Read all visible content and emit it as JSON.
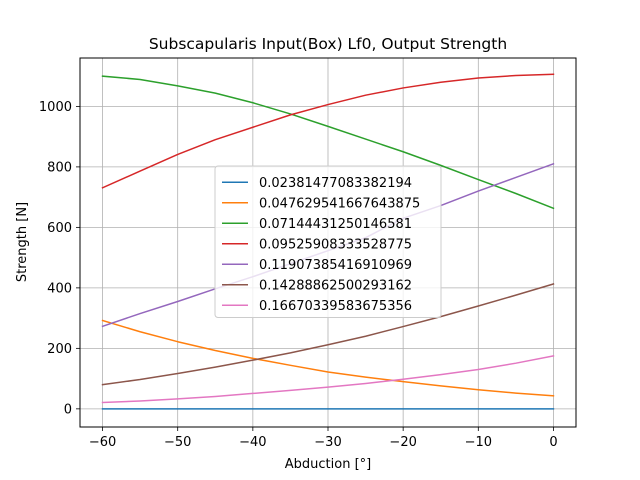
{
  "chart_data": {
    "type": "line",
    "title": "Subscapularis Input(Box) Lf0, Output Strength",
    "xlabel": "Abduction [°]",
    "ylabel": "Strength [N]",
    "xlim": [
      -63,
      3
    ],
    "ylim": [
      -60,
      1160
    ],
    "xticks": [
      -60,
      -50,
      -40,
      -30,
      -20,
      -10,
      0
    ],
    "yticks": [
      0,
      200,
      400,
      600,
      800,
      1000
    ],
    "grid": true,
    "legend_position": "center",
    "x": [
      -60,
      -55,
      -50,
      -45,
      -40,
      -35,
      -30,
      -25,
      -20,
      -15,
      -10,
      -5,
      0
    ],
    "series": [
      {
        "name": "0.02381477083382194",
        "color": "#1f77b4",
        "values": [
          0,
          0,
          0,
          0,
          0,
          0,
          0,
          0,
          0,
          0,
          0,
          0,
          0
        ]
      },
      {
        "name": "0.047629541667643875",
        "color": "#ff7f0e",
        "values": [
          292,
          255,
          222,
          193,
          167,
          144,
          122,
          105,
          90,
          76,
          63,
          52,
          43
        ]
      },
      {
        "name": "0.07144431250146581",
        "color": "#2ca02c",
        "values": [
          1100,
          1089,
          1068,
          1044,
          1012,
          975,
          934,
          892,
          850,
          805,
          758,
          712,
          663
        ]
      },
      {
        "name": "0.09525908333528775",
        "color": "#d62728",
        "values": [
          731,
          786,
          841,
          890,
          931,
          972,
          1006,
          1037,
          1061,
          1080,
          1094,
          1102,
          1106
        ]
      },
      {
        "name": "0.11907385416910969",
        "color": "#9467bd",
        "values": [
          273,
          315,
          355,
          397,
          437,
          480,
          523,
          566,
          630,
          672,
          720,
          765,
          810
        ]
      },
      {
        "name": "0.14288862500293162",
        "color": "#8c564b",
        "values": [
          80,
          97,
          117,
          138,
          161,
          185,
          212,
          240,
          272,
          305,
          340,
          376,
          413
        ]
      },
      {
        "name": "0.16670339583675356",
        "color": "#e377c2",
        "values": [
          21,
          26,
          33,
          41,
          51,
          61,
          72,
          84,
          98,
          113,
          130,
          151,
          175
        ]
      }
    ]
  }
}
